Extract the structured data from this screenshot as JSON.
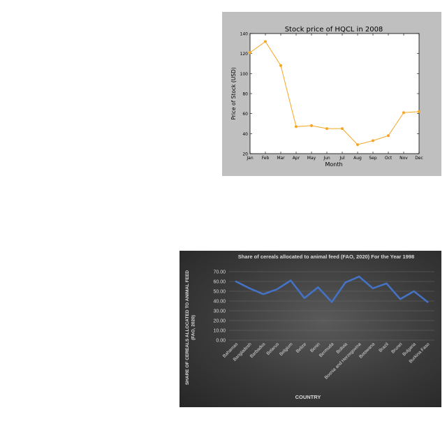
{
  "chart_data": [
    {
      "type": "line",
      "title": "Stock price of HQCL in 2008",
      "xlabel": "Month",
      "ylabel": "Price of Stock (USD)",
      "categories": [
        "Jan",
        "Feb",
        "Mar",
        "Apr",
        "May",
        "Jun",
        "Jul",
        "Aug",
        "Sep",
        "Oct",
        "Nov",
        "Dec"
      ],
      "series": [
        {
          "values": [
            121,
            132,
            108,
            47,
            48,
            45,
            45,
            29,
            33,
            38,
            61,
            62
          ],
          "color": "#f5a623"
        }
      ],
      "ylim": [
        20,
        140
      ],
      "yticks": [
        "20",
        "40",
        "60",
        "80",
        "100",
        "120",
        "140"
      ],
      "grid": false,
      "background": "#bfbfbf"
    },
    {
      "type": "line",
      "title": "Share of cereals allocated to animal feed (FAO, 2020) For the Year 1998",
      "xlabel": "COUNTRY",
      "ylabel": "SHARE OF CEREALS ALLOCATED TO ANIMAL FEED (FAO, 2020)",
      "categories": [
        "Bahamas",
        "Bangladesh",
        "Barbados",
        "Belarus",
        "Belgium",
        "Belize",
        "Benin",
        "Bermuda",
        "Bolivia",
        "Bosnia and Herzegovina",
        "Botswana",
        "Brazil",
        "Brunei",
        "Bulgaria",
        "Burkina Faso"
      ],
      "series": [
        {
          "values": [
            60,
            53,
            47,
            52,
            61,
            43,
            54,
            39,
            59,
            65,
            53,
            58,
            42,
            50,
            39
          ],
          "color": "#4472c4"
        }
      ],
      "ylim": [
        0,
        70
      ],
      "yticks": [
        "0.00",
        "10.00",
        "20.00",
        "30.00",
        "40.00",
        "50.00",
        "60.00",
        "70.00"
      ],
      "grid": true,
      "background": "#3f3f3f"
    }
  ]
}
